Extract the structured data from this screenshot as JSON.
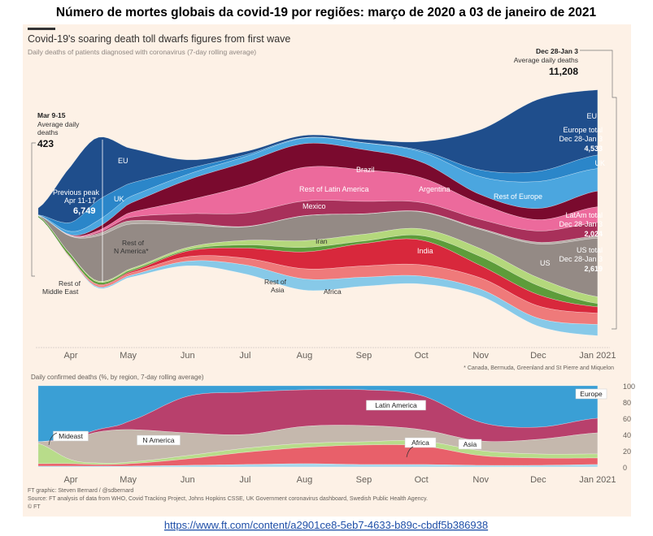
{
  "page_title": "Número de mortes globais da covid-19 por regiões: março de 2020 a 03 de janeiro de 2021",
  "url": "https://www.ft.com/content/a2901ce8-5eb7-4633-b89c-cbdf5b386938",
  "colors": {
    "panel_bg": "#fdf1e6",
    "link": "#1f4fa8"
  },
  "chart_data": [
    {
      "type": "area",
      "stacking": "streamgraph",
      "title": "Covid-19's soaring death toll dwarfs figures from first wave",
      "subtitle": "Daily deaths of patients diagnosed with coronavirus (7-day rolling average)",
      "x": [
        "2020-03-15",
        "2020-04-01",
        "2020-04-15",
        "2020-05-01",
        "2020-06-01",
        "2020-07-01",
        "2020-08-01",
        "2020-09-01",
        "2020-10-01",
        "2020-11-01",
        "2020-12-01",
        "2021-01-01"
      ],
      "xtick_labels": [
        [
          "Apr",
          "2020-04-01"
        ],
        [
          "May",
          "2020-05-01"
        ],
        [
          "Jun",
          "2020-06-01"
        ],
        [
          "Jul",
          "2020-07-01"
        ],
        [
          "Aug",
          "2020-08-01"
        ],
        [
          "Sep",
          "2020-09-01"
        ],
        [
          "Oct",
          "2020-10-01"
        ],
        [
          "Nov",
          "2020-11-01"
        ],
        [
          "Dec",
          "2020-12-01"
        ],
        [
          "Jan 2021",
          "2021-01-01"
        ]
      ],
      "series": [
        {
          "name": "EU",
          "color": "#1f4e8c",
          "values": [
            300,
            2500,
            2800,
            1600,
            400,
            150,
            100,
            150,
            400,
            1800,
            3200,
            2900
          ]
        },
        {
          "name": "UK",
          "color": "#2b86c9",
          "values": [
            10,
            400,
            900,
            600,
            250,
            80,
            20,
            10,
            60,
            300,
            450,
            600
          ]
        },
        {
          "name": "Rest of Europe",
          "color": "#4ba6df",
          "values": [
            20,
            150,
            300,
            300,
            250,
            250,
            250,
            300,
            450,
            800,
            1200,
            1000
          ]
        },
        {
          "name": "Brazil",
          "color": "#7a0a2e",
          "values": [
            0,
            20,
            150,
            400,
            900,
            1050,
            1050,
            900,
            700,
            400,
            500,
            700
          ]
        },
        {
          "name": "Rest of Latin America",
          "color": "#ec6a9c",
          "values": [
            0,
            20,
            80,
            200,
            600,
            1200,
            1500,
            1400,
            1100,
            700,
            500,
            700
          ]
        },
        {
          "name": "Mexico",
          "color": "#a8305a",
          "values": [
            0,
            5,
            50,
            150,
            400,
            600,
            650,
            550,
            400,
            400,
            500,
            600
          ]
        },
        {
          "name": "Rest of N America*",
          "color": "#b5aca6",
          "values": [
            0,
            20,
            100,
            150,
            100,
            20,
            10,
            10,
            20,
            50,
            80,
            100
          ]
        },
        {
          "name": "US",
          "color": "#948a85",
          "values": [
            5,
            800,
            2000,
            2000,
            1000,
            600,
            1100,
            900,
            750,
            850,
            1500,
            2600
          ]
        },
        {
          "name": "Rest of Middle East",
          "color": "#b4d87c",
          "values": [
            5,
            20,
            50,
            60,
            100,
            200,
            300,
            300,
            300,
            350,
            350,
            300
          ]
        },
        {
          "name": "Iran",
          "color": "#5d9c3a",
          "values": [
            70,
            130,
            100,
            70,
            60,
            140,
            200,
            110,
            200,
            400,
            400,
            150
          ]
        },
        {
          "name": "India",
          "color": "#d8283c",
          "values": [
            0,
            5,
            30,
            60,
            250,
            450,
            750,
            1000,
            1100,
            550,
            500,
            280
          ]
        },
        {
          "name": "Rest of Asia",
          "color": "#ef7a7a",
          "values": [
            5,
            40,
            80,
            100,
            200,
            300,
            450,
            500,
            500,
            500,
            550,
            500
          ]
        },
        {
          "name": "Africa",
          "color": "#87c9e8",
          "values": [
            0,
            20,
            50,
            80,
            200,
            400,
            500,
            400,
            350,
            300,
            350,
            500
          ]
        }
      ],
      "labels": {
        "eu": "EU",
        "uk": "UK",
        "brazil": "Brazil",
        "rest_latam": "Rest of Latin America",
        "argentina": "Argentina",
        "mexico": "Mexico",
        "rest_nam_1": "Rest of",
        "rest_nam_2": "N America*",
        "iran": "Iran",
        "india": "India",
        "us": "US",
        "rest_europe": "Rest of Europe",
        "rest_me_1": "Rest of",
        "rest_me_2": "Middle East",
        "rest_asia_1": "Rest of",
        "rest_asia_2": "Asia",
        "africa": "Africa",
        "eu_right": "EU",
        "uk_right": "UK"
      },
      "annotations": {
        "start": {
          "period": "Mar 9-15",
          "label_1": "Average daily",
          "label_2": "deaths",
          "value": "423"
        },
        "peak": {
          "label": "Previous peak",
          "period": "Apr 11-17",
          "value": "6,749"
        },
        "end": {
          "period": "Dec 28-Jan 3",
          "label": "Average daily deaths",
          "value": "11,208"
        },
        "europe_total": {
          "label": "Europe total",
          "period": "Dec 28-Jan 3",
          "value": "4,533"
        },
        "latam_total": {
          "label": "LatAm total",
          "period": "Dec 28-Jan 3",
          "value": "2,024"
        },
        "us_total": {
          "label": "US total",
          "period": "Dec 28-Jan 3",
          "value": "2,619"
        }
      },
      "footnote": "* Canada, Bermuda, Greenland and St Pierre and Miquelon"
    },
    {
      "type": "area",
      "stacking": "percent",
      "subtitle": "Daily confirmed deaths (%, by region, 7-day rolling average)",
      "ylim": [
        0,
        100
      ],
      "yticks": [
        "0",
        "20",
        "40",
        "60",
        "80",
        "100"
      ],
      "x": [
        "2020-03-15",
        "2020-04-01",
        "2020-04-15",
        "2020-05-01",
        "2020-06-01",
        "2020-07-01",
        "2020-08-01",
        "2020-09-01",
        "2020-10-01",
        "2020-11-01",
        "2020-12-01",
        "2021-01-01"
      ],
      "xtick_labels": [
        [
          "Apr",
          "2020-04-01"
        ],
        [
          "May",
          "2020-05-01"
        ],
        [
          "Jun",
          "2020-06-01"
        ],
        [
          "Jul",
          "2020-07-01"
        ],
        [
          "Aug",
          "2020-08-01"
        ],
        [
          "Sep",
          "2020-09-01"
        ],
        [
          "Oct",
          "2020-10-01"
        ],
        [
          "Nov",
          "2020-11-01"
        ],
        [
          "Dec",
          "2020-12-01"
        ],
        [
          "Jan 2021",
          "2021-01-01"
        ]
      ],
      "series": [
        {
          "name": "Africa",
          "color": "#a8d8ec",
          "values": [
            1,
            1,
            1,
            1,
            2,
            3,
            4,
            3,
            3,
            2,
            2,
            3
          ]
        },
        {
          "name": "Asia",
          "color": "#e8606a",
          "values": [
            3,
            3,
            2,
            3,
            8,
            15,
            20,
            24,
            23,
            12,
            9,
            8
          ]
        },
        {
          "name": "Mideast",
          "color": "#b8dc8a",
          "values": [
            25,
            5,
            2,
            2,
            4,
            5,
            5,
            4,
            6,
            6,
            5,
            5
          ]
        },
        {
          "name": "N America",
          "color": "#c5b8ad",
          "values": [
            2,
            25,
            38,
            40,
            28,
            17,
            21,
            20,
            14,
            12,
            18,
            26
          ]
        },
        {
          "name": "Latin America",
          "color": "#b8406c",
          "values": [
            0,
            2,
            3,
            10,
            45,
            52,
            45,
            44,
            42,
            23,
            15,
            18
          ]
        },
        {
          "name": "Europe",
          "color": "#3a9fd5",
          "values": [
            69,
            64,
            54,
            44,
            13,
            8,
            5,
            5,
            12,
            45,
            51,
            40
          ]
        }
      ]
    }
  ],
  "credits": {
    "graphic": "FT graphic: Steven Bernard / @sdbernard",
    "source": "Source: FT analysis of data from WHO, Covid Tracking Project, Johns Hopkins CSSE, UK Government coronavirus dashboard, Swedish Public Health Agency.",
    "copyright": "© FT"
  }
}
